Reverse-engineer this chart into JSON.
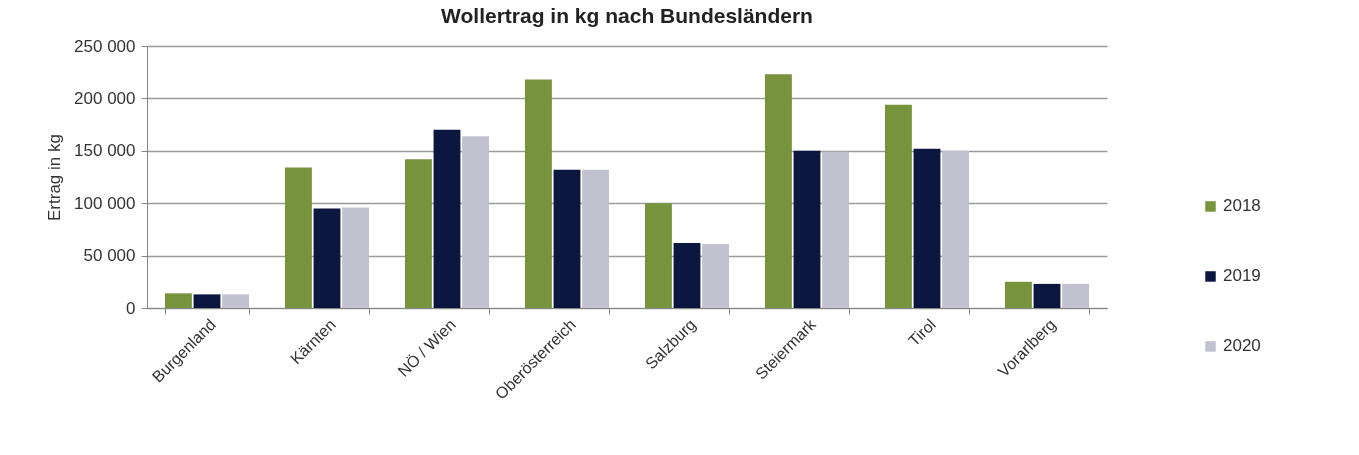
{
  "chart_data": {
    "type": "bar",
    "title": "Wollertrag in kg nach Bundesländern",
    "ylabel": "Ertrag in kg",
    "categories": [
      "Burgenland",
      "Kärnten",
      "NÖ / Wien",
      "Oberösterreich",
      "Salzburg",
      "Steiermark",
      "Tirol",
      "Vorarlberg"
    ],
    "series": [
      {
        "name": "2018",
        "color": "#77933c",
        "values": [
          14000,
          134000,
          142000,
          218000,
          100000,
          223000,
          194000,
          25000
        ]
      },
      {
        "name": "2019",
        "color": "#0c1740",
        "values": [
          13000,
          95000,
          170000,
          132000,
          62000,
          150000,
          152000,
          23000
        ]
      },
      {
        "name": "2020",
        "color": "#c2c1d0",
        "values": [
          13000,
          96000,
          164000,
          132000,
          61000,
          149000,
          150000,
          23000
        ]
      }
    ],
    "ylim": [
      0,
      250000
    ],
    "yticks": [
      0,
      {
        "value": 50000,
        "label": "50 000"
      },
      {
        "value": 100000,
        "label": "100 000"
      },
      {
        "value": 150000,
        "label": "150 000"
      },
      {
        "value": 200000,
        "label": "200 000"
      },
      {
        "value": 250000,
        "label": "250 000"
      }
    ],
    "grid": "y",
    "legend": "right"
  }
}
